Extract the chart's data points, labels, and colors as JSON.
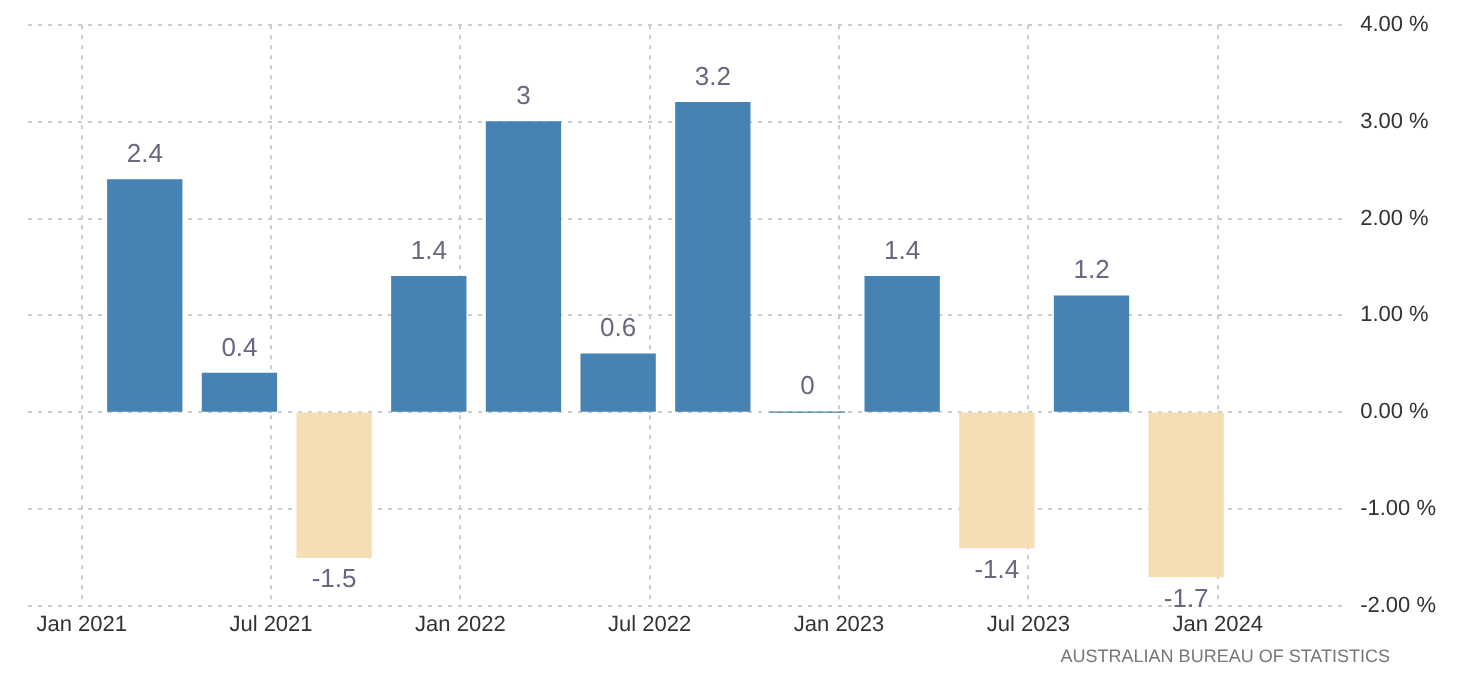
{
  "chart_data": {
    "type": "bar",
    "x": [
      "2021-03",
      "2021-06",
      "2021-09",
      "2021-12",
      "2022-03",
      "2022-06",
      "2022-09",
      "2022-12",
      "2023-03",
      "2023-06",
      "2023-09",
      "2023-12"
    ],
    "values": [
      2.4,
      0.4,
      -1.5,
      1.4,
      3,
      0.6,
      3.2,
      0,
      1.4,
      -1.4,
      1.2,
      -1.7
    ],
    "colors": [
      "#4682b4",
      "#4682b4",
      "#f5deb3",
      "#4682b4",
      "#4682b4",
      "#4682b4",
      "#4682b4",
      "#4682b4",
      "#4682b4",
      "#f5deb3",
      "#4682b4",
      "#f5deb3"
    ],
    "xlim": [
      "2020-11-10",
      "2024-05-05"
    ],
    "xticks": [
      {
        "value": "2021-01",
        "label": "Jan 2021"
      },
      {
        "value": "2021-07",
        "label": "Jul 2021"
      },
      {
        "value": "2022-01",
        "label": "Jan 2022"
      },
      {
        "value": "2022-07",
        "label": "Jul 2022"
      },
      {
        "value": "2023-01",
        "label": "Jan 2023"
      },
      {
        "value": "2023-07",
        "label": "Jul 2023"
      },
      {
        "value": "2024-01",
        "label": "Jan 2024"
      }
    ],
    "ylim": [
      -2,
      4
    ],
    "yticks": [
      {
        "value": 4,
        "label": "4.00 %"
      },
      {
        "value": 3,
        "label": "3.00 %"
      },
      {
        "value": 2,
        "label": "2.00 %"
      },
      {
        "value": 1,
        "label": "1.00 %"
      },
      {
        "value": 0,
        "label": "0.00 %"
      },
      {
        "value": -1,
        "label": "-1.00 %"
      },
      {
        "value": -2,
        "label": "-2.00 %"
      }
    ],
    "grid": true,
    "legend": false,
    "data_labels": true,
    "annotations": [
      "AUSTRALIAN BUREAU OF STATISTICS"
    ]
  }
}
